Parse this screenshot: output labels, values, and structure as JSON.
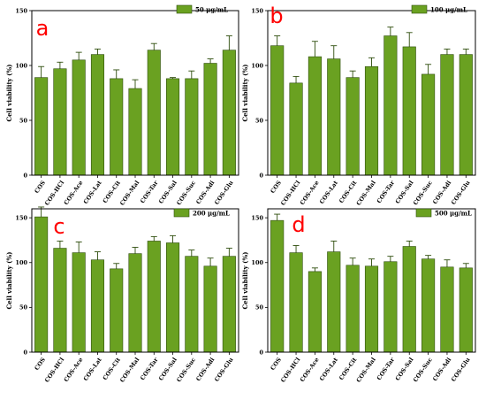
{
  "colors": {
    "bar_fill": "#6aa121",
    "bar_stroke": "#2e4d0c",
    "panel_letter": "#ff0000",
    "axis": "#000000"
  },
  "chart_data": [
    {
      "type": "bar",
      "panel_letter": "a",
      "legend": "50 μg/mL",
      "legend_position": "top-right",
      "ylabel": "Cell viability (%)",
      "xlabel": "",
      "ylim": [
        0,
        150
      ],
      "yticks": [
        0,
        50,
        100,
        150
      ],
      "categories": [
        "COS",
        "COS-HCl",
        "COS-Ace",
        "COS-Lat",
        "COS-Cit",
        "COS-Mal",
        "COS-Tar",
        "COS-Sal",
        "COS-Suc",
        "COS-Adi",
        "COS-Glu"
      ],
      "values": [
        89,
        97,
        105,
        110,
        88,
        79,
        114,
        88,
        88,
        102,
        114
      ],
      "errors": [
        10,
        6,
        7,
        5,
        8,
        8,
        6,
        1,
        7,
        4,
        13
      ]
    },
    {
      "type": "bar",
      "panel_letter": "b",
      "legend": "100 μg/mL",
      "legend_position": "top-right",
      "ylabel": "Cell viability (%)",
      "xlabel": "",
      "ylim": [
        0,
        150
      ],
      "yticks": [
        0,
        50,
        100,
        150
      ],
      "categories": [
        "COS",
        "COS-HCl",
        "COS-Ace",
        "COS-Lat",
        "COS-Cit",
        "COS-Mal",
        "COS-Tar",
        "COS-Sal",
        "COS-Suc",
        "COS-Adi",
        "COS-Glu"
      ],
      "values": [
        118,
        84,
        108,
        106,
        89,
        99,
        127,
        117,
        92,
        110,
        110
      ],
      "errors": [
        9,
        6,
        14,
        12,
        6,
        8,
        8,
        13,
        9,
        5,
        5
      ]
    },
    {
      "type": "bar",
      "panel_letter": "c",
      "legend": "200 μg/mL",
      "legend_position": "top-right",
      "ylabel": "Cell viability (%)",
      "xlabel": "",
      "ylim": [
        0,
        160
      ],
      "yticks": [
        0,
        50,
        100,
        150
      ],
      "categories": [
        "COS",
        "COS-HCl",
        "COS-Ace",
        "COS-Lat",
        "COS-Cit",
        "COS-Mal",
        "COS-Tar",
        "COS-Sal",
        "COS-Suc",
        "COS-Adi",
        "COS-Glu"
      ],
      "values": [
        151,
        116,
        111,
        103,
        93,
        110,
        124,
        122,
        107,
        96,
        107
      ],
      "errors": [
        11,
        8,
        12,
        9,
        6,
        7,
        5,
        8,
        7,
        9,
        9
      ]
    },
    {
      "type": "bar",
      "panel_letter": "d",
      "legend": "500 μg/mL",
      "legend_position": "top-right",
      "ylabel": "Cell viability (%)",
      "xlabel": "",
      "ylim": [
        0,
        160
      ],
      "yticks": [
        0,
        50,
        100,
        150
      ],
      "categories": [
        "COS",
        "COS-HCl",
        "COS-Ace",
        "COS-Lat",
        "COS-Cit",
        "COS-Mal",
        "COS-Tar",
        "COS-Sal",
        "COS-Suc",
        "COS-Adi",
        "COS-Glu"
      ],
      "values": [
        147,
        111,
        90,
        112,
        97,
        96,
        101,
        118,
        104,
        95,
        94
      ],
      "errors": [
        7,
        8,
        4,
        12,
        8,
        8,
        6,
        6,
        4,
        8,
        5
      ]
    }
  ]
}
